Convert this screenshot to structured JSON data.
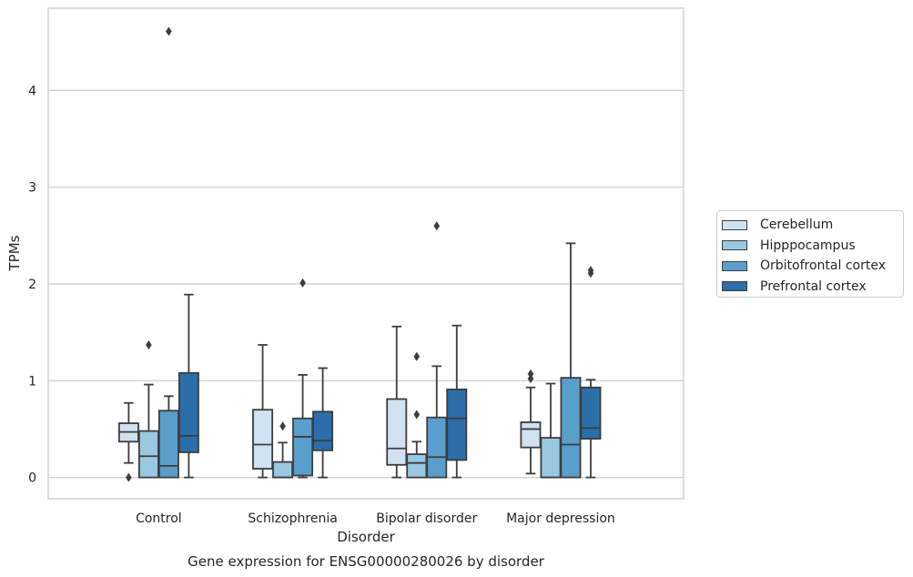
{
  "chart_data": {
    "type": "box",
    "title": "Gene expression for ENSG00000280026 by disorder",
    "xlabel": "Disorder",
    "ylabel": "TPMs",
    "ylim": [
      -0.22,
      4.85
    ],
    "yticks": [
      0,
      1,
      2,
      3,
      4
    ],
    "grid": "horizontal",
    "legend_position": "right",
    "categories": [
      "Control",
      "Schizophrenia",
      "Bipolar disorder",
      "Major depression"
    ],
    "series": [
      {
        "name": "Cerebellum",
        "color": "#d0e1f2",
        "boxes": [
          {
            "whisker_low": 0.15,
            "q1": 0.37,
            "median": 0.47,
            "q3": 0.56,
            "whisker_high": 0.77,
            "outliers": [
              0.0
            ]
          },
          {
            "whisker_low": 0.0,
            "q1": 0.09,
            "median": 0.34,
            "q3": 0.7,
            "whisker_high": 1.37,
            "outliers": []
          },
          {
            "whisker_low": 0.0,
            "q1": 0.13,
            "median": 0.3,
            "q3": 0.81,
            "whisker_high": 1.56,
            "outliers": []
          },
          {
            "whisker_low": 0.04,
            "q1": 0.31,
            "median": 0.5,
            "q3": 0.57,
            "whisker_high": 0.93,
            "outliers": [
              1.02,
              1.07
            ]
          }
        ]
      },
      {
        "name": "Hipppocampus",
        "color": "#9ac8e0",
        "boxes": [
          {
            "whisker_low": 0.0,
            "q1": 0.0,
            "median": 0.22,
            "q3": 0.48,
            "whisker_high": 0.96,
            "outliers": [
              1.37
            ]
          },
          {
            "whisker_low": 0.0,
            "q1": 0.0,
            "median": 0.0,
            "q3": 0.16,
            "whisker_high": 0.36,
            "outliers": [
              0.53
            ]
          },
          {
            "whisker_low": 0.0,
            "q1": 0.0,
            "median": 0.15,
            "q3": 0.24,
            "whisker_high": 0.37,
            "outliers": [
              0.65,
              1.25
            ]
          },
          {
            "whisker_low": 0.0,
            "q1": 0.0,
            "median": 0.0,
            "q3": 0.41,
            "whisker_high": 0.97,
            "outliers": []
          }
        ]
      },
      {
        "name": "Orbitofrontal cortex",
        "color": "#5a9ecc",
        "boxes": [
          {
            "whisker_low": 0.0,
            "q1": 0.0,
            "median": 0.12,
            "q3": 0.69,
            "whisker_high": 0.84,
            "outliers": [
              4.61
            ]
          },
          {
            "whisker_low": 0.0,
            "q1": 0.02,
            "median": 0.42,
            "q3": 0.61,
            "whisker_high": 1.06,
            "outliers": [
              2.01
            ]
          },
          {
            "whisker_low": 0.0,
            "q1": 0.0,
            "median": 0.21,
            "q3": 0.62,
            "whisker_high": 1.15,
            "outliers": [
              2.6
            ]
          },
          {
            "whisker_low": 0.0,
            "q1": 0.0,
            "median": 0.34,
            "q3": 1.03,
            "whisker_high": 2.42,
            "outliers": []
          }
        ]
      },
      {
        "name": "Prefrontal cortex",
        "color": "#2b6ea9",
        "boxes": [
          {
            "whisker_low": 0.0,
            "q1": 0.26,
            "median": 0.43,
            "q3": 1.08,
            "whisker_high": 1.89,
            "outliers": []
          },
          {
            "whisker_low": 0.0,
            "q1": 0.28,
            "median": 0.38,
            "q3": 0.68,
            "whisker_high": 1.13,
            "outliers": []
          },
          {
            "whisker_low": 0.0,
            "q1": 0.18,
            "median": 0.61,
            "q3": 0.91,
            "whisker_high": 1.57,
            "outliers": []
          },
          {
            "whisker_low": 0.0,
            "q1": 0.4,
            "median": 0.51,
            "q3": 0.93,
            "whisker_high": 1.01,
            "outliers": [
              2.11,
              2.14
            ]
          }
        ]
      }
    ]
  }
}
